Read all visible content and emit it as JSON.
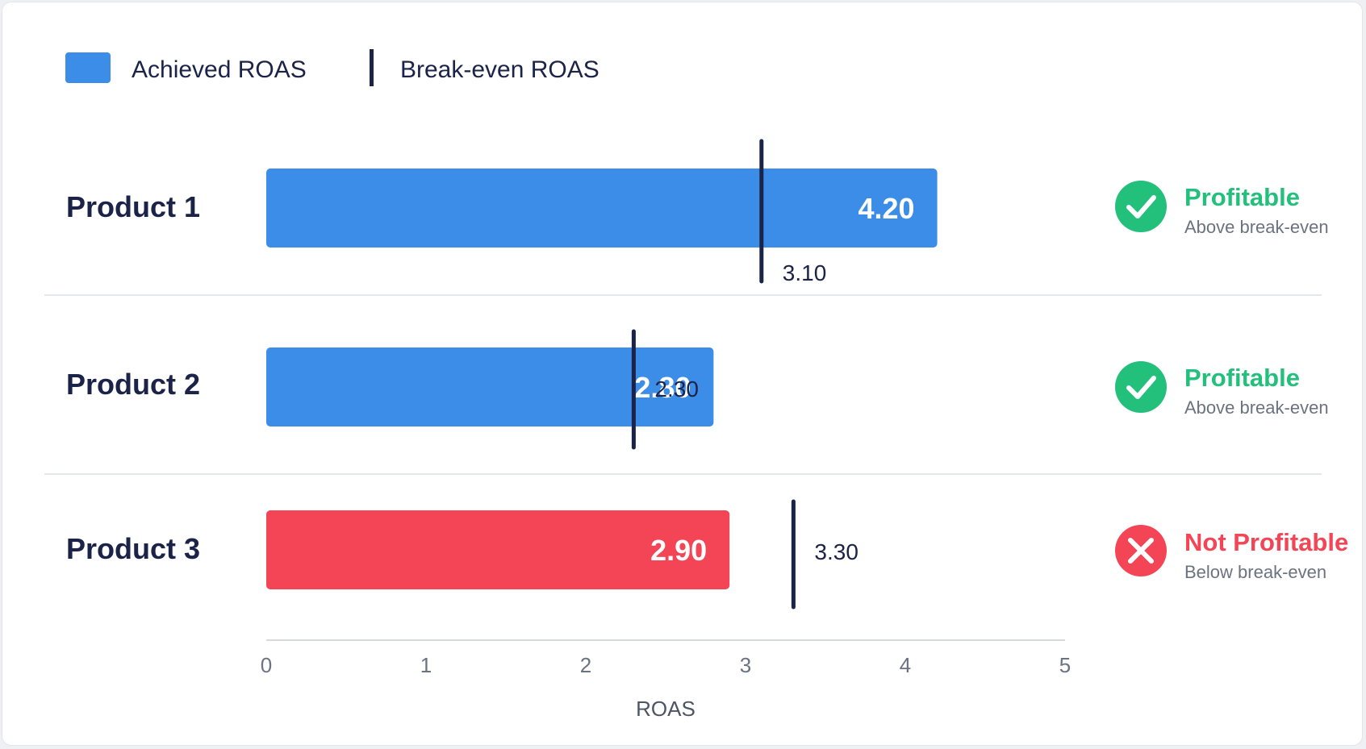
{
  "chart_data": {
    "type": "bar",
    "orientation": "horizontal",
    "legend": [
      {
        "label": "Achieved ROAS",
        "kind": "bar",
        "color": "#3b8de8"
      },
      {
        "label": "Break-even ROAS",
        "kind": "line",
        "color": "#1b2348"
      }
    ],
    "legend_position": "top-left",
    "categories": [
      "Product 1",
      "Product 2",
      "Product 3"
    ],
    "achieved": [
      4.2,
      2.8,
      2.9
    ],
    "achieved_labels": [
      "4.20",
      "2.80",
      "2.90"
    ],
    "break_even": [
      3.1,
      2.3,
      3.3
    ],
    "break_even_labels": [
      "3.10",
      "2.30",
      "3.30"
    ],
    "bar_colors": [
      "#3b8de8",
      "#3b8de8",
      "#f34555"
    ],
    "status": [
      {
        "title": "Profitable",
        "subtitle": "Above break-even",
        "icon": "check-circle-icon",
        "color": "#22c07a"
      },
      {
        "title": "Profitable",
        "subtitle": "Above break-even",
        "icon": "check-circle-icon",
        "color": "#22c07a"
      },
      {
        "title": "Not Profitable",
        "subtitle": "Below break-even",
        "icon": "x-circle-icon",
        "color": "#f34555"
      }
    ],
    "xlabel": "ROAS",
    "xlim": [
      0,
      5
    ],
    "xticks": [
      "0",
      "1",
      "2",
      "3",
      "4",
      "5"
    ],
    "grid": false
  }
}
